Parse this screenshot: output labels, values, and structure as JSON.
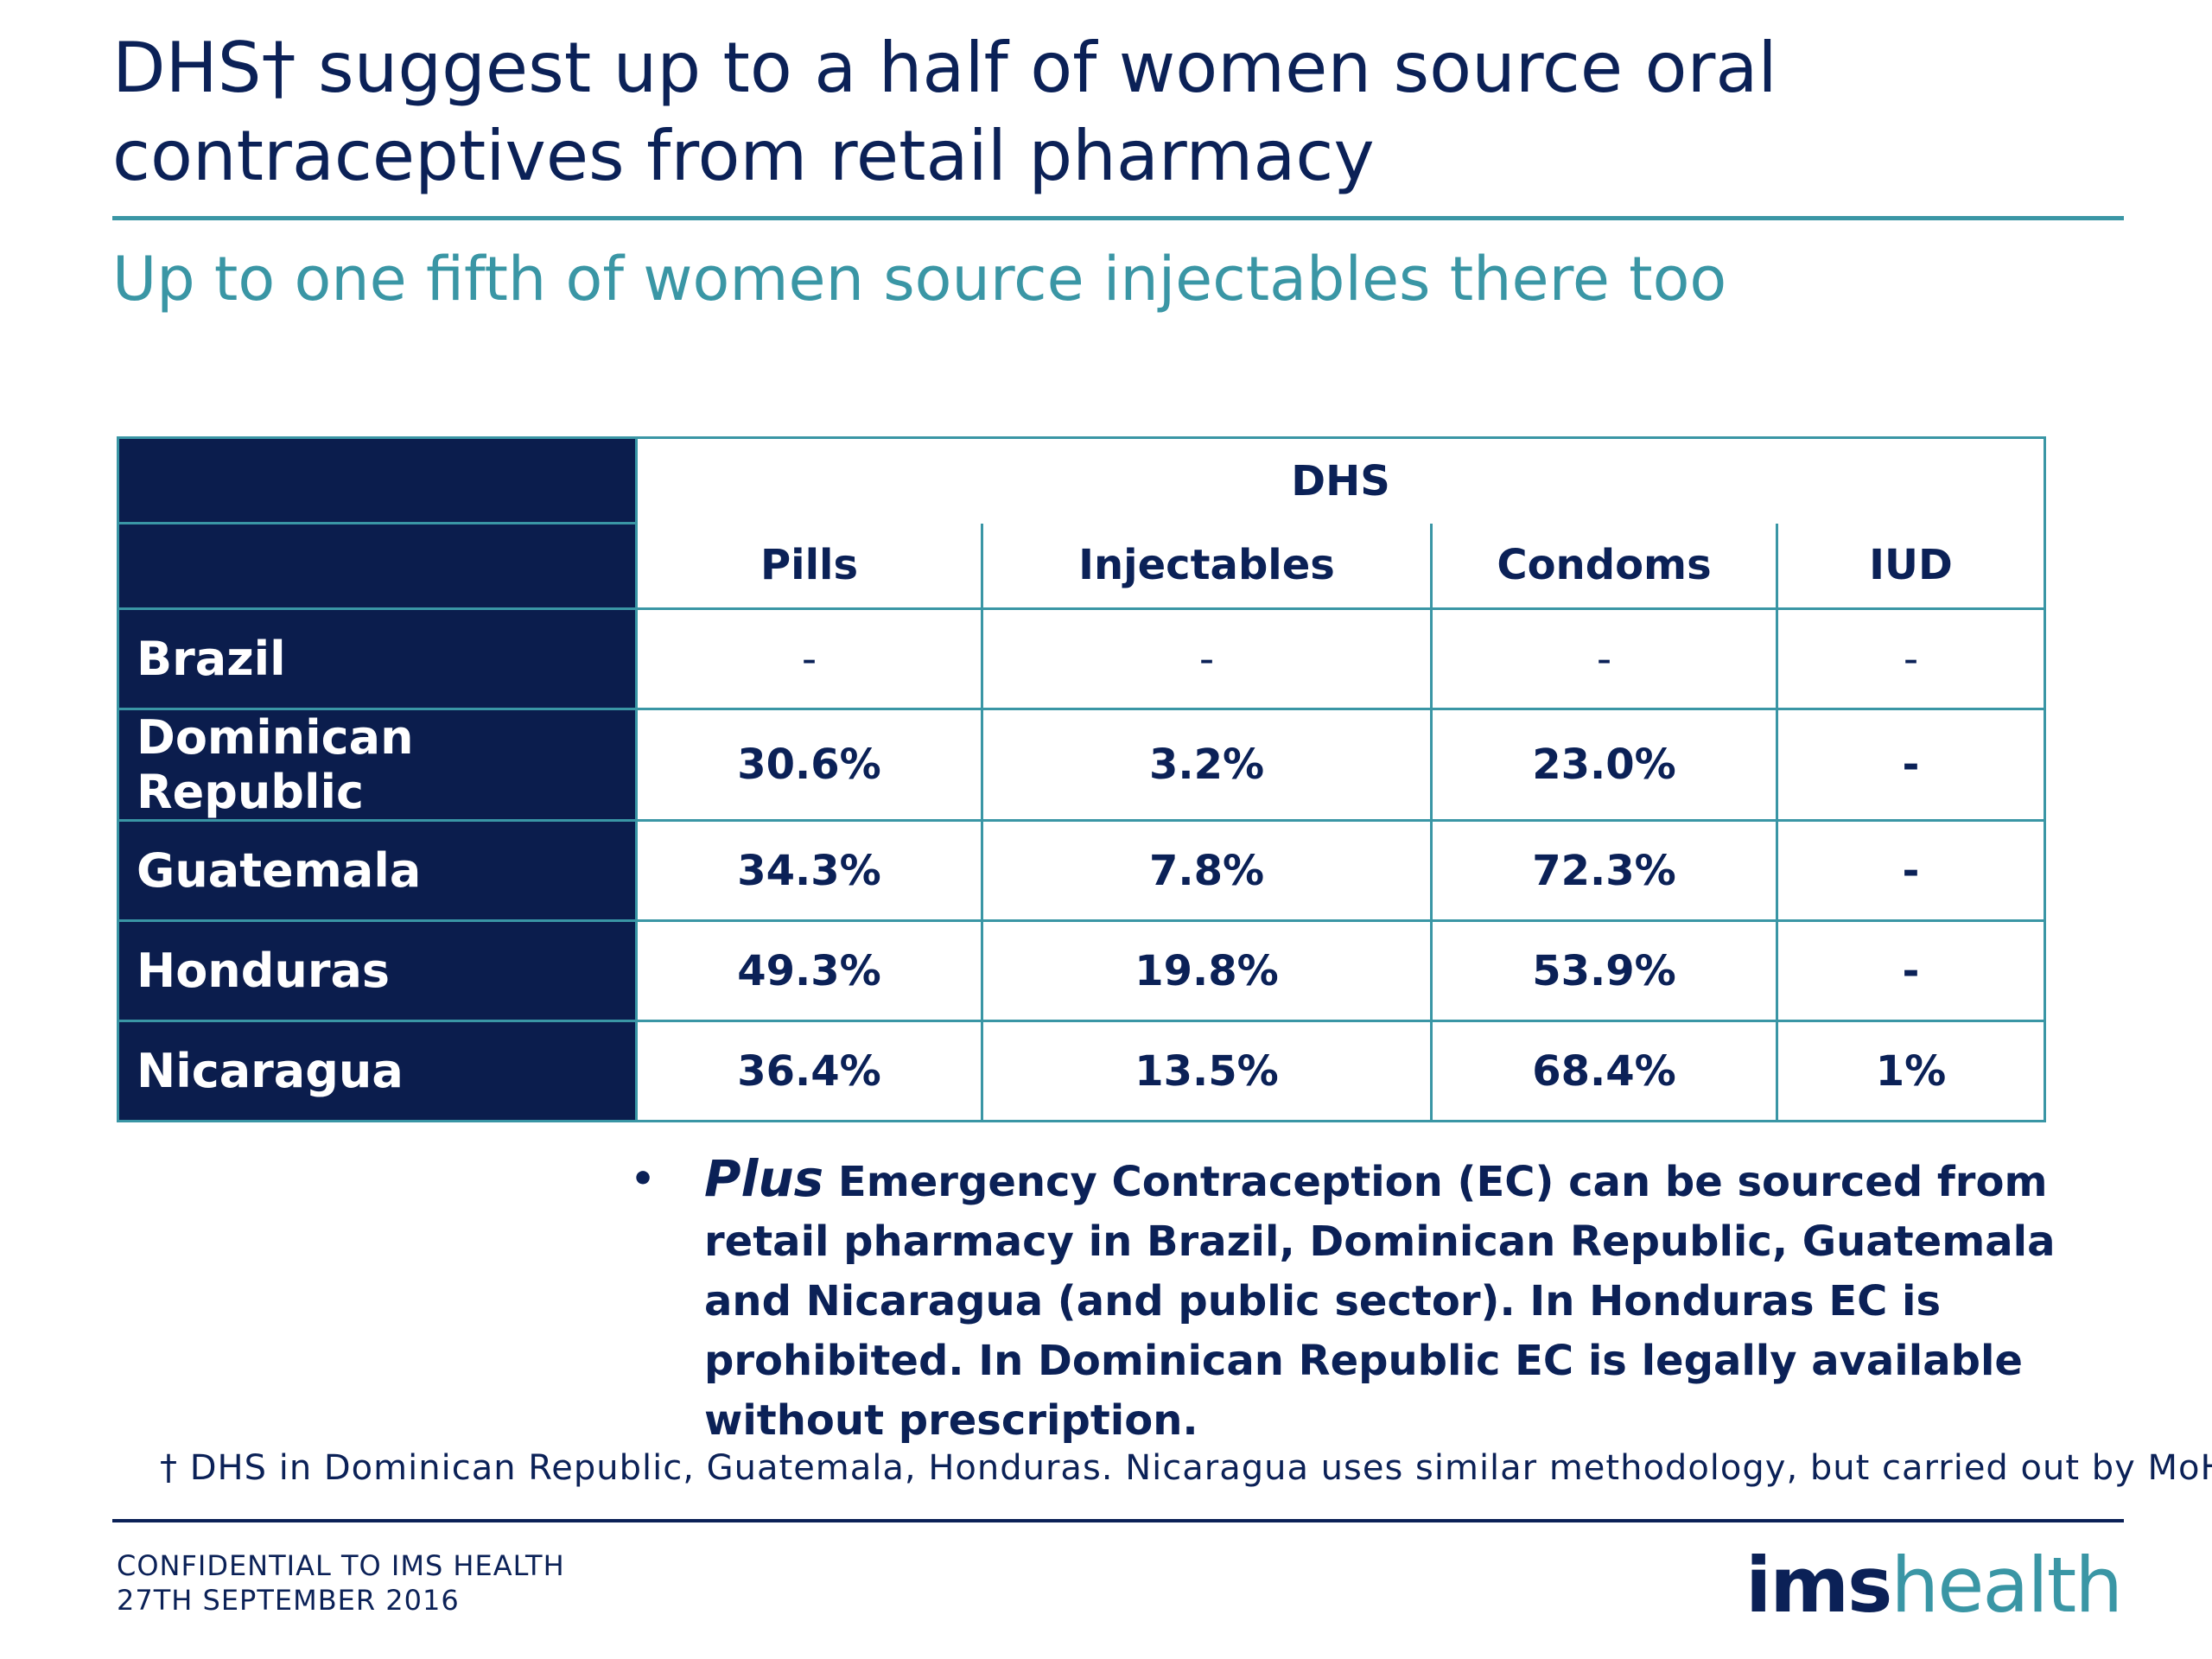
{
  "title": "DHS† suggest up to a half of women source oral contraceptives from retail pharmacy",
  "subtitle": "Up to one fifth of women source injectables there too",
  "table": {
    "group_header": "DHS",
    "columns": [
      "Pills",
      "Injectables",
      "Condoms",
      "IUD"
    ],
    "rows": [
      {
        "country": "Brazil",
        "values": [
          "-",
          "-",
          "-",
          "-"
        ]
      },
      {
        "country": "Dominican Republic",
        "values": [
          "30.6%",
          "3.2%",
          "23.0%",
          "-"
        ]
      },
      {
        "country": "Guatemala",
        "values": [
          "34.3%",
          "7.8%",
          "72.3%",
          "-"
        ]
      },
      {
        "country": "Honduras",
        "values": [
          "49.3%",
          "19.8%",
          "53.9%",
          "-"
        ]
      },
      {
        "country": "Nicaragua",
        "values": [
          "36.4%",
          "13.5%",
          "68.4%",
          "1%"
        ]
      }
    ]
  },
  "note": {
    "bullet": "•",
    "lead": "Plus",
    "text": "Emergency Contraception (EC) can be sourced from retail pharmacy in Brazil, Dominican Republic, Guatemala and Nicaragua (and public sector). In Honduras EC is prohibited. In Dominican Republic EC is legally available without prescription."
  },
  "footnote": "† DHS in Dominican Republic, Guatemala, Honduras. Nicaragua uses similar methodology, but carried out by MoH.",
  "footer": {
    "confidential": "CONFIDENTIAL TO IMS HEALTH",
    "date": "27TH SEPTEMBER 2016"
  },
  "logo": {
    "part1": "ims",
    "part2": "health"
  },
  "colors": {
    "navy": "#0b1d4d",
    "teal": "#3a96a5",
    "text": "#0b2157"
  }
}
